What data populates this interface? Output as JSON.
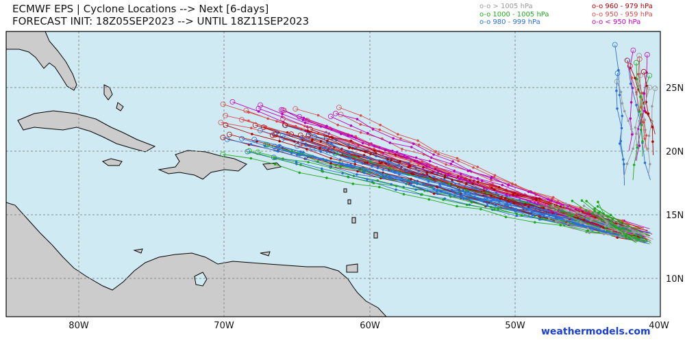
{
  "header": {
    "title_line1": "ECMWF EPS | Cyclone Locations --> Next [6-days]",
    "title_line2": "FORECAST INIT: 18Z05SEP2023 --> UNTIL 18Z11SEP2023"
  },
  "legend": {
    "left": [
      {
        "label": "o-o > 1005 hPa",
        "color": "#999999"
      },
      {
        "label": "o-o 1000 - 1005 hPa",
        "color": "#1fa81f"
      },
      {
        "label": "o-o 980 - 999 hPa",
        "color": "#2a6fd6"
      }
    ],
    "right": [
      {
        "label": "o-o 960 - 979 hPa",
        "color": "#b00000"
      },
      {
        "label": "o-o 950 - 959 hPa",
        "color": "#d94a4a"
      },
      {
        "label": "o-o < 950 hPa",
        "color": "#c000c0"
      }
    ]
  },
  "map": {
    "ocean_color": "#cfeaf2",
    "land_color": "#cccccc",
    "lon_labels": [
      "80W",
      "70W",
      "60W",
      "50W",
      "40W"
    ],
    "lat_labels": [
      "25N",
      "20N",
      "15N",
      "10N"
    ]
  },
  "credit": "weathermodels.com"
}
